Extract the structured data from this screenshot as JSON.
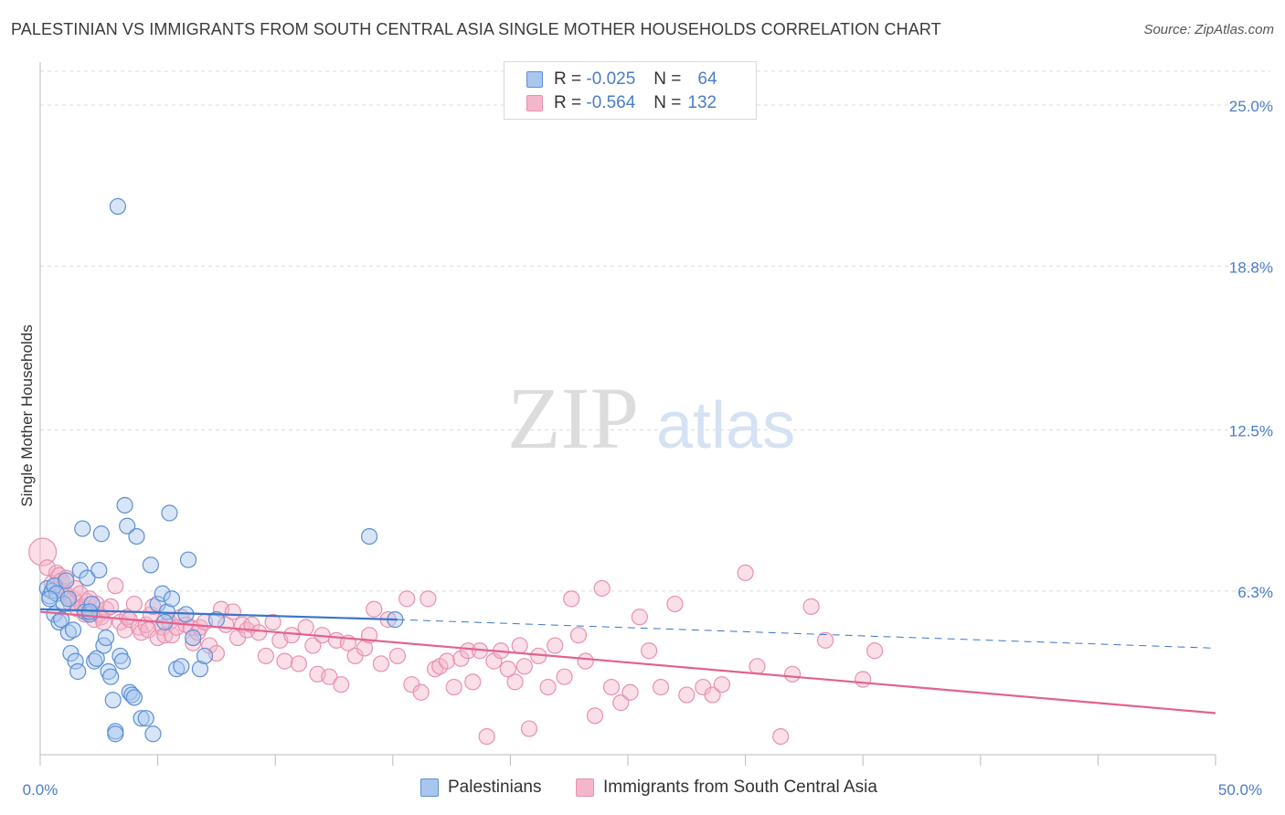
{
  "title": "PALESTINIAN VS IMMIGRANTS FROM SOUTH CENTRAL ASIA SINGLE MOTHER HOUSEHOLDS CORRELATION CHART",
  "source": "Source: ZipAtlas.com",
  "watermark": {
    "zip": "ZIP",
    "atlas": "atlas"
  },
  "legend_top": {
    "rows": [
      {
        "r_label": "R =",
        "r_value": "-0.025",
        "n_label": "N =",
        "n_value": "64"
      },
      {
        "r_label": "R =",
        "r_value": "-0.564",
        "n_label": "N =",
        "n_value": "132"
      }
    ]
  },
  "legend_bottom": {
    "series1": "Palestinians",
    "series2": "Immigrants from South Central Asia"
  },
  "colors": {
    "series1_fill": "#a9c6ee",
    "series1_stroke": "#5b8fd4",
    "series1_line": "#3a75c9",
    "series2_fill": "#f4b6cb",
    "series2_stroke": "#e891ad",
    "series2_line": "#e2628f",
    "tick": "#4a7cc7",
    "grid": "#dcdcdc"
  },
  "chart_data": {
    "type": "scatter",
    "title": "PALESTINIAN VS IMMIGRANTS FROM SOUTH CENTRAL ASIA SINGLE MOTHER HOUSEHOLDS CORRELATION CHART",
    "xlabel": "",
    "ylabel": "Single Mother Households",
    "xlim": [
      0,
      50
    ],
    "ylim": [
      0,
      26.3
    ],
    "x_tick_labels": [
      "0.0%",
      "50.0%"
    ],
    "y_ticks": [
      6.3,
      12.5,
      18.8,
      25.0
    ],
    "y_tick_labels": [
      "6.3%",
      "12.5%",
      "18.8%",
      "25.0%"
    ],
    "grid": true,
    "legend": "bottom",
    "series": [
      {
        "name": "Palestinians",
        "r": -0.025,
        "n": 64,
        "trend": {
          "x": [
            0,
            15.2
          ],
          "y": [
            5.6,
            5.2
          ]
        },
        "trend_extension": {
          "x": [
            15.2,
            50
          ],
          "y": [
            5.2,
            4.1
          ]
        },
        "points": [
          [
            3.3,
            21.1
          ],
          [
            0.3,
            6.4
          ],
          [
            0.4,
            6.1
          ],
          [
            0.5,
            6.3
          ],
          [
            0.6,
            6.5
          ],
          [
            0.7,
            6.2
          ],
          [
            0.4,
            6.0
          ],
          [
            0.6,
            5.4
          ],
          [
            0.8,
            5.1
          ],
          [
            0.9,
            5.2
          ],
          [
            1.0,
            5.8
          ],
          [
            1.1,
            6.7
          ],
          [
            1.2,
            4.7
          ],
          [
            1.3,
            3.9
          ],
          [
            1.4,
            4.8
          ],
          [
            1.5,
            3.6
          ],
          [
            1.6,
            3.2
          ],
          [
            1.7,
            7.1
          ],
          [
            1.8,
            8.7
          ],
          [
            1.9,
            5.5
          ],
          [
            2.0,
            6.8
          ],
          [
            2.1,
            5.4
          ],
          [
            2.2,
            5.8
          ],
          [
            2.3,
            3.6
          ],
          [
            2.4,
            3.7
          ],
          [
            2.5,
            7.1
          ],
          [
            2.6,
            8.5
          ],
          [
            2.7,
            4.2
          ],
          [
            2.8,
            4.5
          ],
          [
            2.9,
            3.2
          ],
          [
            3.0,
            3.0
          ],
          [
            3.1,
            2.1
          ],
          [
            3.2,
            0.9
          ],
          [
            3.4,
            3.8
          ],
          [
            3.5,
            3.6
          ],
          [
            3.6,
            9.6
          ],
          [
            3.7,
            8.8
          ],
          [
            3.8,
            2.4
          ],
          [
            3.9,
            2.3
          ],
          [
            4.0,
            2.2
          ],
          [
            4.1,
            8.4
          ],
          [
            4.3,
            1.4
          ],
          [
            4.5,
            1.4
          ],
          [
            4.7,
            7.3
          ],
          [
            4.8,
            0.8
          ],
          [
            5.0,
            5.8
          ],
          [
            5.2,
            6.2
          ],
          [
            5.4,
            5.5
          ],
          [
            5.5,
            9.3
          ],
          [
            5.6,
            6.0
          ],
          [
            5.8,
            3.3
          ],
          [
            6.0,
            3.4
          ],
          [
            6.2,
            5.4
          ],
          [
            6.3,
            7.5
          ],
          [
            6.5,
            4.5
          ],
          [
            6.8,
            3.3
          ],
          [
            7.0,
            3.8
          ],
          [
            7.5,
            5.2
          ],
          [
            14.0,
            8.4
          ],
          [
            15.1,
            5.2
          ],
          [
            3.2,
            0.8
          ],
          [
            1.2,
            6.0
          ],
          [
            2.1,
            5.5
          ],
          [
            5.3,
            5.1
          ]
        ]
      },
      {
        "name": "Immigrants from South Central Asia",
        "r": -0.564,
        "n": 132,
        "trend": {
          "x": [
            0,
            50
          ],
          "y": [
            5.5,
            1.6
          ]
        },
        "points": [
          [
            0.1,
            7.8
          ],
          [
            0.3,
            7.2
          ],
          [
            0.5,
            6.6
          ],
          [
            0.7,
            7.0
          ],
          [
            0.8,
            6.9
          ],
          [
            0.9,
            6.7
          ],
          [
            1.0,
            6.3
          ],
          [
            1.1,
            6.8
          ],
          [
            1.2,
            6.1
          ],
          [
            1.3,
            5.8
          ],
          [
            1.4,
            6.0
          ],
          [
            1.5,
            6.4
          ],
          [
            1.6,
            5.6
          ],
          [
            1.7,
            6.2
          ],
          [
            1.8,
            5.7
          ],
          [
            1.9,
            5.4
          ],
          [
            2.0,
            5.9
          ],
          [
            2.1,
            6.0
          ],
          [
            2.2,
            5.5
          ],
          [
            2.3,
            5.2
          ],
          [
            2.4,
            5.8
          ],
          [
            2.5,
            5.4
          ],
          [
            2.6,
            5.3
          ],
          [
            2.7,
            5.1
          ],
          [
            2.8,
            5.6
          ],
          [
            3.0,
            5.7
          ],
          [
            3.2,
            6.5
          ],
          [
            3.4,
            5.1
          ],
          [
            3.6,
            4.8
          ],
          [
            3.7,
            5.3
          ],
          [
            3.8,
            5.2
          ],
          [
            4.0,
            5.8
          ],
          [
            4.2,
            4.9
          ],
          [
            4.3,
            4.7
          ],
          [
            4.5,
            5.0
          ],
          [
            4.6,
            4.8
          ],
          [
            4.7,
            5.4
          ],
          [
            4.8,
            5.7
          ],
          [
            5.0,
            4.5
          ],
          [
            5.2,
            4.9
          ],
          [
            5.3,
            4.6
          ],
          [
            5.5,
            5.1
          ],
          [
            5.6,
            4.6
          ],
          [
            5.8,
            4.9
          ],
          [
            6.0,
            5.3
          ],
          [
            6.2,
            5.0
          ],
          [
            6.4,
            4.9
          ],
          [
            6.5,
            4.3
          ],
          [
            6.7,
            4.7
          ],
          [
            6.8,
            4.9
          ],
          [
            7.0,
            5.1
          ],
          [
            7.2,
            4.2
          ],
          [
            7.5,
            3.9
          ],
          [
            7.7,
            5.6
          ],
          [
            7.9,
            5.0
          ],
          [
            8.2,
            5.5
          ],
          [
            8.4,
            4.5
          ],
          [
            8.6,
            5.0
          ],
          [
            8.8,
            4.8
          ],
          [
            9.0,
            5.0
          ],
          [
            9.3,
            4.7
          ],
          [
            9.6,
            3.8
          ],
          [
            9.9,
            5.1
          ],
          [
            10.2,
            4.4
          ],
          [
            10.4,
            3.6
          ],
          [
            10.7,
            4.6
          ],
          [
            11.0,
            3.5
          ],
          [
            11.3,
            4.9
          ],
          [
            11.6,
            4.2
          ],
          [
            11.8,
            3.1
          ],
          [
            12.0,
            4.6
          ],
          [
            12.3,
            3.0
          ],
          [
            12.6,
            4.4
          ],
          [
            12.8,
            2.7
          ],
          [
            13.1,
            4.3
          ],
          [
            13.4,
            3.8
          ],
          [
            13.8,
            4.1
          ],
          [
            14.0,
            4.6
          ],
          [
            14.2,
            5.6
          ],
          [
            14.5,
            3.5
          ],
          [
            14.8,
            5.2
          ],
          [
            15.2,
            3.8
          ],
          [
            15.6,
            6.0
          ],
          [
            15.8,
            2.7
          ],
          [
            16.2,
            2.4
          ],
          [
            16.5,
            6.0
          ],
          [
            16.8,
            3.3
          ],
          [
            17.0,
            3.4
          ],
          [
            17.3,
            3.6
          ],
          [
            17.6,
            2.6
          ],
          [
            17.9,
            3.7
          ],
          [
            18.2,
            4.0
          ],
          [
            18.4,
            2.8
          ],
          [
            18.7,
            4.0
          ],
          [
            19.0,
            0.7
          ],
          [
            19.3,
            3.6
          ],
          [
            19.6,
            4.0
          ],
          [
            19.9,
            3.3
          ],
          [
            20.2,
            2.8
          ],
          [
            20.4,
            4.2
          ],
          [
            20.6,
            3.4
          ],
          [
            20.8,
            1.0
          ],
          [
            21.2,
            3.8
          ],
          [
            21.6,
            2.6
          ],
          [
            21.9,
            4.2
          ],
          [
            22.3,
            3.0
          ],
          [
            22.6,
            6.0
          ],
          [
            22.9,
            4.6
          ],
          [
            23.2,
            3.6
          ],
          [
            23.6,
            1.5
          ],
          [
            23.9,
            6.4
          ],
          [
            24.3,
            2.6
          ],
          [
            24.7,
            2.0
          ],
          [
            25.1,
            2.4
          ],
          [
            25.5,
            5.3
          ],
          [
            25.9,
            4.0
          ],
          [
            26.4,
            2.6
          ],
          [
            27.0,
            5.8
          ],
          [
            27.5,
            2.3
          ],
          [
            28.2,
            2.6
          ],
          [
            28.6,
            2.3
          ],
          [
            29.0,
            2.7
          ],
          [
            30.0,
            7.0
          ],
          [
            30.5,
            3.4
          ],
          [
            31.5,
            0.7
          ],
          [
            32.0,
            3.1
          ],
          [
            32.8,
            5.7
          ],
          [
            33.4,
            4.4
          ],
          [
            35.0,
            2.9
          ],
          [
            35.5,
            4.0
          ]
        ]
      }
    ]
  }
}
